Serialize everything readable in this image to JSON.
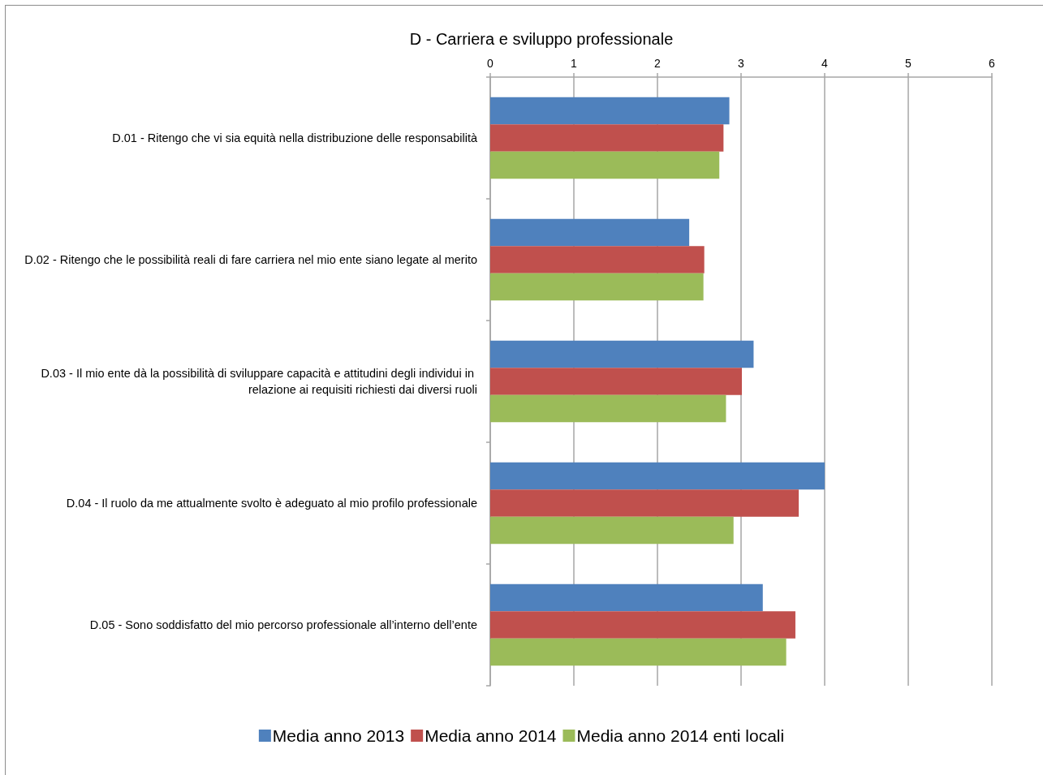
{
  "chart_data": {
    "type": "bar",
    "orientation": "horizontal",
    "title": "D - Carriera e sviluppo professionale",
    "categories": [
      "D.01 - Ritengo che vi sia equità nella distribuzione delle responsabilità",
      "D.02 - Ritengo che le possibilità reali di fare carriera nel mio ente siano legate al merito",
      "D.03 - Il mio ente dà la possibilità di sviluppare capacità e attitudini degli individui in relazione ai requisiti richiesti dai diversi ruoli",
      "D.04 - Il ruolo da me attualmente svolto è adeguato al mio profilo professionale",
      "D.05 - Sono soddisfatto del mio percorso professionale all’interno dell’ente"
    ],
    "series": [
      {
        "name": "Media anno 2013",
        "color": "#4f81bd",
        "values": [
          2.86,
          2.38,
          3.15,
          4.0,
          3.26
        ]
      },
      {
        "name": "Media anno 2014",
        "color": "#c0504d",
        "values": [
          2.79,
          2.56,
          3.01,
          3.69,
          3.65
        ]
      },
      {
        "name": "Media anno 2014 enti locali",
        "color": "#9bbb59",
        "values": [
          2.74,
          2.55,
          2.82,
          2.91,
          3.54
        ]
      }
    ],
    "xlim": [
      0,
      6
    ],
    "xticks": [
      0,
      1,
      2,
      3,
      4,
      5,
      6
    ],
    "grid": "x",
    "legend": "bottom"
  }
}
